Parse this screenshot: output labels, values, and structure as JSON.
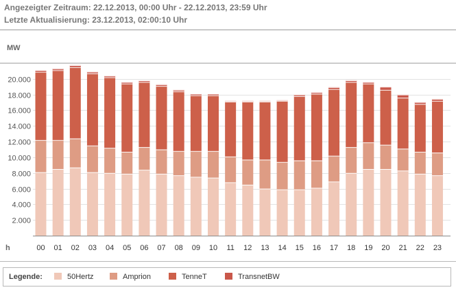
{
  "header": {
    "line1": "Angezeigter Zeitraum: 22.12.2013, 00:00 Uhr - 22.12.2013, 23:59 Uhr",
    "line2": "Letzte Aktualisierung: 23.12.2013, 02:00:10 Uhr"
  },
  "legend": {
    "title": "Legende:",
    "items": [
      "50Hertz",
      "Amprion",
      "TenneT",
      "TransnetBW"
    ]
  },
  "colors": {
    "50Hertz": "#f0c8b8",
    "Amprion": "#de9c84",
    "TenneT": "#cd604a",
    "TransnetBW": "#c9574a"
  },
  "chart_data": {
    "type": "bar",
    "stacked": true,
    "ylabel": "MW",
    "xlabel": "h",
    "ylim": [
      0,
      22000
    ],
    "yticks": [
      "2.000",
      "4.000",
      "6.000",
      "8.000",
      "10.000",
      "12.000",
      "14.000",
      "16.000",
      "18.000",
      "20.000"
    ],
    "ytick_values": [
      2000,
      4000,
      6000,
      8000,
      10000,
      12000,
      14000,
      16000,
      18000,
      20000
    ],
    "grid": true,
    "legend_position": "bottom",
    "categories": [
      "00",
      "01",
      "02",
      "03",
      "04",
      "05",
      "06",
      "07",
      "08",
      "09",
      "10",
      "11",
      "12",
      "13",
      "14",
      "15",
      "16",
      "17",
      "18",
      "19",
      "20",
      "21",
      "22",
      "23"
    ],
    "series": [
      {
        "name": "50Hertz",
        "values": [
          8100,
          8500,
          8700,
          8100,
          8000,
          7900,
          8400,
          7900,
          7700,
          7500,
          7400,
          6800,
          6500,
          6000,
          5900,
          5900,
          6100,
          6900,
          8000,
          8500,
          8500,
          8300,
          7900,
          7700
        ]
      },
      {
        "name": "Amprion",
        "values": [
          4100,
          3700,
          3700,
          3400,
          3200,
          2800,
          2900,
          3100,
          3100,
          3300,
          3400,
          3300,
          3200,
          3700,
          3500,
          3700,
          3500,
          3300,
          3300,
          3400,
          3100,
          2800,
          2800,
          2900
        ]
      },
      {
        "name": "TenneT",
        "values": [
          8700,
          8900,
          9100,
          9200,
          9000,
          8700,
          8300,
          8100,
          7600,
          7100,
          7100,
          7000,
          7400,
          7400,
          7800,
          8200,
          8500,
          8500,
          8300,
          7500,
          7000,
          6500,
          6100,
          6600
        ]
      },
      {
        "name": "TransnetBW",
        "values": [
          220,
          220,
          250,
          220,
          200,
          200,
          200,
          200,
          200,
          200,
          200,
          100,
          100,
          100,
          100,
          200,
          200,
          250,
          220,
          200,
          400,
          400,
          250,
          250
        ]
      }
    ]
  }
}
